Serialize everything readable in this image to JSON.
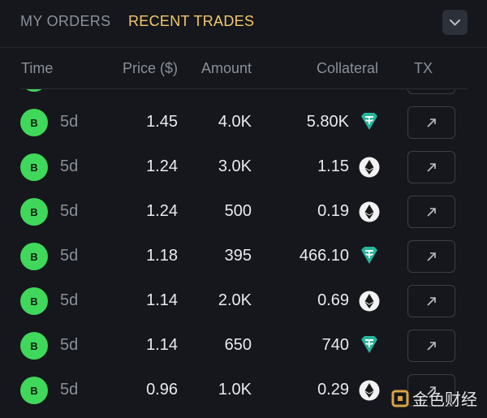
{
  "tabs": [
    "MY ORDERS",
    "RECENT TRADES"
  ],
  "table": {
    "headers": [
      "Time",
      "Price ($)",
      "Amount",
      "Collateral",
      "TX"
    ],
    "rows": [
      {
        "side": "B",
        "time": "5d",
        "price": "1.45",
        "amount": "4.0K",
        "collateral": "5.80K",
        "icon": "tether"
      },
      {
        "side": "B",
        "time": "5d",
        "price": "1.24",
        "amount": "3.0K",
        "collateral": "1.15",
        "icon": "eth"
      },
      {
        "side": "B",
        "time": "5d",
        "price": "1.24",
        "amount": "500",
        "collateral": "0.19",
        "icon": "eth"
      },
      {
        "side": "B",
        "time": "5d",
        "price": "1.18",
        "amount": "395",
        "collateral": "466.10",
        "icon": "tether"
      },
      {
        "side": "B",
        "time": "5d",
        "price": "1.14",
        "amount": "2.0K",
        "collateral": "0.69",
        "icon": "eth"
      },
      {
        "side": "B",
        "time": "5d",
        "price": "1.14",
        "amount": "650",
        "collateral": "740",
        "icon": "tether"
      },
      {
        "side": "B",
        "time": "5d",
        "price": "0.96",
        "amount": "1.0K",
        "collateral": "0.29",
        "icon": "eth"
      }
    ]
  },
  "watermark": "金色财经"
}
